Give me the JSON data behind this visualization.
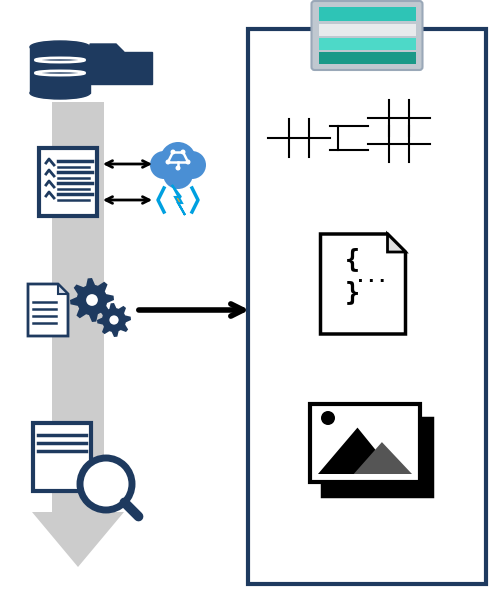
{
  "bg_color": "#ffffff",
  "dark_blue": "#1e3a5f",
  "teal_bright": "#2ec4b6",
  "teal_mid": "#4dd9c8",
  "teal_dark": "#1a9988",
  "gray_clip": "#c0c8d0",
  "arrow_gray": "#cccccc",
  "cloud_blue": "#4a8fd4",
  "lightning_yellow": "#f5a623",
  "lightning_blue": "#00a0e0",
  "panel_border": "#1e3a5f",
  "figsize": [
    5.0,
    6.12
  ],
  "dpi": 100
}
